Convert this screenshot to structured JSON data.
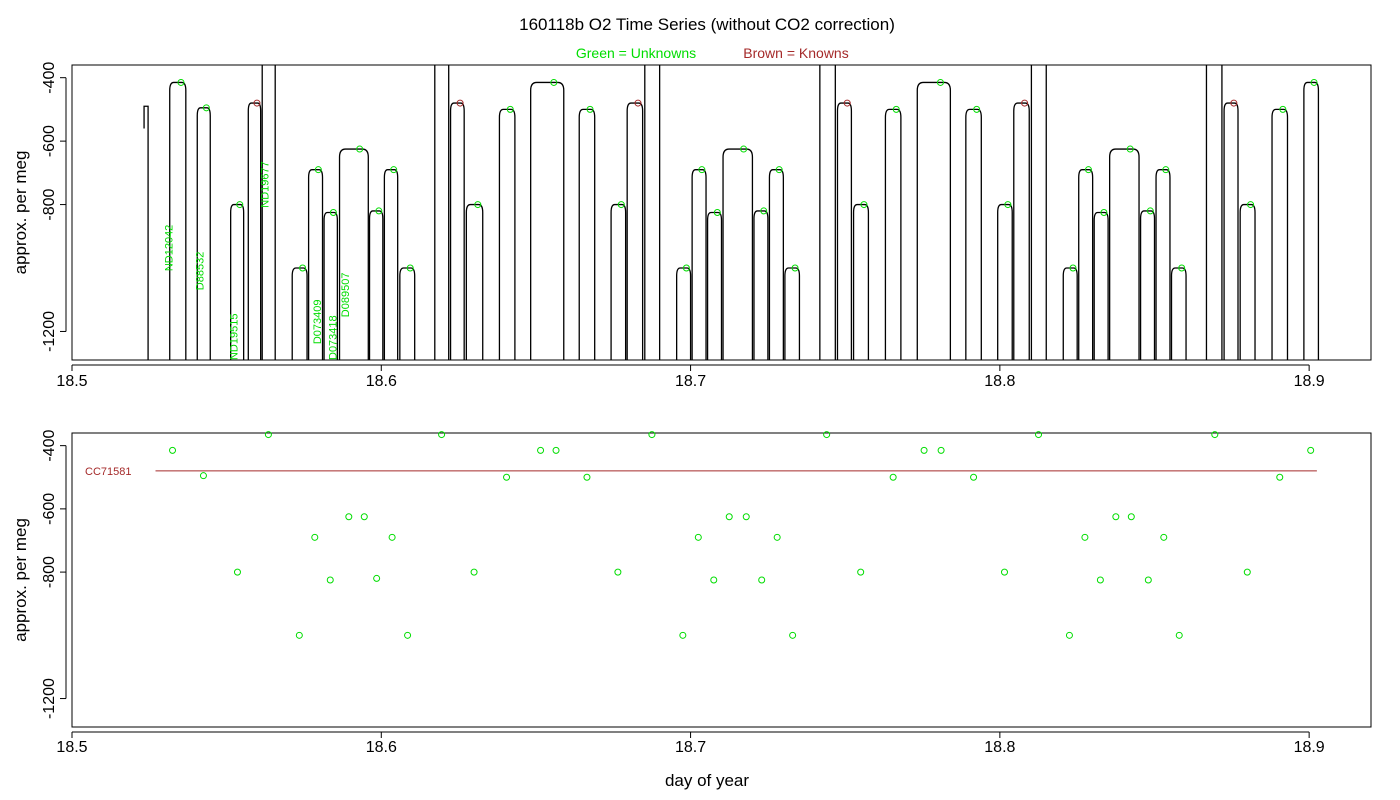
{
  "title": "160118b   O2 Time Series (without CO2 correction)",
  "legend": {
    "unknowns": "Green = Unknowns",
    "knowns": "Brown = Knowns",
    "unknowns_color": "#00dd00",
    "knowns_color": "#a52a2a"
  },
  "xlabel": "day of year",
  "chart_data": [
    {
      "type": "line",
      "panel": "top",
      "ylabel": "approx. per meg",
      "xlim": [
        18.5,
        18.92
      ],
      "ylim": [
        -1290,
        -360
      ],
      "y_inverted": true,
      "xticks": [
        18.5,
        18.6,
        18.7,
        18.8,
        18.9
      ],
      "xtick_labels": [
        "18.5",
        "18.6",
        "18.7",
        "18.8",
        "18.9"
      ],
      "yticks": [
        -400,
        -600,
        -800,
        -1200
      ],
      "ytick_labels": [
        "-400",
        "-600",
        "-800",
        "-1200"
      ],
      "grid": false,
      "trace_color": "#000000",
      "segments": [
        {
          "x": [
            18.5233,
            18.5246
          ],
          "y": -490,
          "role": "start"
        },
        {
          "x": [
            18.5316,
            18.5368
          ],
          "y": -415,
          "role": "unknown"
        },
        {
          "x": [
            18.5405,
            18.5447
          ],
          "y": -495,
          "role": "unknown"
        },
        {
          "x": [
            18.5513,
            18.5555
          ],
          "y": -800,
          "role": "unknown"
        },
        {
          "x": [
            18.557,
            18.561
          ],
          "y": -480,
          "role": "known"
        },
        {
          "x": [
            18.5615,
            18.5657
          ],
          "y": -325,
          "role": "unknown"
        },
        {
          "x": [
            18.5712,
            18.576
          ],
          "y": -1000,
          "role": "unknown"
        },
        {
          "x": [
            18.5765,
            18.581
          ],
          "y": -690,
          "role": "unknown"
        },
        {
          "x": [
            18.5815,
            18.5858
          ],
          "y": -825,
          "role": "unknown"
        },
        {
          "x": [
            18.5865,
            18.5958
          ],
          "y": -625,
          "role": "unknown"
        },
        {
          "x": [
            18.5962,
            18.6005
          ],
          "y": -820,
          "role": "unknown"
        },
        {
          "x": [
            18.601,
            18.6053
          ],
          "y": -690,
          "role": "unknown"
        },
        {
          "x": [
            18.606,
            18.6108
          ],
          "y": -1000,
          "role": "unknown"
        },
        {
          "x": [
            18.6173,
            18.6218
          ],
          "y": -325,
          "role": "unknown"
        },
        {
          "x": [
            18.6224,
            18.6268
          ],
          "y": -480,
          "role": "known"
        },
        {
          "x": [
            18.6275,
            18.6328
          ],
          "y": -800,
          "role": "unknown"
        },
        {
          "x": [
            18.6382,
            18.6432
          ],
          "y": -500,
          "role": "unknown"
        },
        {
          "x": [
            18.6483,
            18.659
          ],
          "y": -415,
          "role": "unknown"
        },
        {
          "x": [
            18.664,
            18.669
          ],
          "y": -500,
          "role": "unknown"
        },
        {
          "x": [
            18.6743,
            18.679
          ],
          "y": -800,
          "role": "unknown"
        },
        {
          "x": [
            18.6795,
            18.6845
          ],
          "y": -480,
          "role": "known"
        },
        {
          "x": [
            18.6852,
            18.69
          ],
          "y": -325,
          "role": "unknown"
        },
        {
          "x": [
            18.6955,
            18.7
          ],
          "y": -1000,
          "role": "unknown"
        },
        {
          "x": [
            18.7005,
            18.705
          ],
          "y": -690,
          "role": "unknown"
        },
        {
          "x": [
            18.7055,
            18.71
          ],
          "y": -825,
          "role": "unknown"
        },
        {
          "x": [
            18.7105,
            18.72
          ],
          "y": -625,
          "role": "unknown"
        },
        {
          "x": [
            18.7205,
            18.725
          ],
          "y": -820,
          "role": "unknown"
        },
        {
          "x": [
            18.7255,
            18.73
          ],
          "y": -690,
          "role": "unknown"
        },
        {
          "x": [
            18.7305,
            18.7352
          ],
          "y": -1000,
          "role": "unknown"
        },
        {
          "x": [
            18.7418,
            18.7468
          ],
          "y": -325,
          "role": "unknown"
        },
        {
          "x": [
            18.7475,
            18.752
          ],
          "y": -480,
          "role": "known"
        },
        {
          "x": [
            18.7527,
            18.7575
          ],
          "y": -800,
          "role": "unknown"
        },
        {
          "x": [
            18.763,
            18.768
          ],
          "y": -500,
          "role": "unknown"
        },
        {
          "x": [
            18.7733,
            18.784
          ],
          "y": -415,
          "role": "unknown"
        },
        {
          "x": [
            18.789,
            18.794
          ],
          "y": -500,
          "role": "unknown"
        },
        {
          "x": [
            18.7993,
            18.804
          ],
          "y": -800,
          "role": "unknown"
        },
        {
          "x": [
            18.8045,
            18.8095
          ],
          "y": -480,
          "role": "known"
        },
        {
          "x": [
            18.8102,
            18.815
          ],
          "y": -325,
          "role": "unknown"
        },
        {
          "x": [
            18.8205,
            18.825
          ],
          "y": -1000,
          "role": "unknown"
        },
        {
          "x": [
            18.8255,
            18.83
          ],
          "y": -690,
          "role": "unknown"
        },
        {
          "x": [
            18.8305,
            18.835
          ],
          "y": -825,
          "role": "unknown"
        },
        {
          "x": [
            18.8355,
            18.845
          ],
          "y": -625,
          "role": "unknown"
        },
        {
          "x": [
            18.8455,
            18.85
          ],
          "y": -820,
          "role": "unknown"
        },
        {
          "x": [
            18.8505,
            18.855
          ],
          "y": -690,
          "role": "unknown"
        },
        {
          "x": [
            18.8555,
            18.8602
          ],
          "y": -1000,
          "role": "unknown"
        },
        {
          "x": [
            18.8668,
            18.8718
          ],
          "y": -325,
          "role": "unknown"
        },
        {
          "x": [
            18.8725,
            18.877
          ],
          "y": -480,
          "role": "known"
        },
        {
          "x": [
            18.8777,
            18.8825
          ],
          "y": -800,
          "role": "unknown"
        },
        {
          "x": [
            18.888,
            18.893
          ],
          "y": -500,
          "role": "unknown"
        },
        {
          "x": [
            18.8983,
            18.903
          ],
          "y": -415,
          "role": "unknown"
        }
      ],
      "annotations": [
        {
          "text": "ND12042",
          "x": 18.5325,
          "y": -1010,
          "color": "#00dd00"
        },
        {
          "text": "D88532",
          "x": 18.5425,
          "y": -1070,
          "color": "#00dd00"
        },
        {
          "text": "ND19515",
          "x": 18.5535,
          "y": -1290,
          "color": "#00dd00"
        },
        {
          "text": "ND19677",
          "x": 18.5635,
          "y": -810,
          "color": "#00dd00"
        },
        {
          "text": "D073409",
          "x": 18.5805,
          "y": -1240,
          "color": "#00dd00"
        },
        {
          "text": "D073418",
          "x": 18.5855,
          "y": -1290,
          "color": "#00dd00"
        },
        {
          "text": "D089507",
          "x": 18.5895,
          "y": -1155,
          "color": "#00dd00"
        }
      ]
    },
    {
      "type": "scatter",
      "panel": "bottom",
      "ylabel": "approx. per meg",
      "xlim": [
        18.5,
        18.92
      ],
      "ylim": [
        -1290,
        -360
      ],
      "y_inverted": true,
      "xticks": [
        18.5,
        18.6,
        18.7,
        18.8,
        18.9
      ],
      "xtick_labels": [
        "18.5",
        "18.6",
        "18.7",
        "18.8",
        "18.9"
      ],
      "yticks": [
        -400,
        -600,
        -800,
        -1200
      ],
      "ytick_labels": [
        "-400",
        "-600",
        "-800",
        "-1200"
      ],
      "grid": false,
      "point_color": "#00dd00",
      "reference_line": {
        "label": "CC71581",
        "x": [
          18.527,
          18.9025
        ],
        "y": -480,
        "color": "#a52a2a"
      },
      "points": [
        {
          "x": 18.5325,
          "y": -415
        },
        {
          "x": 18.5425,
          "y": -495
        },
        {
          "x": 18.5535,
          "y": -800
        },
        {
          "x": 18.5635,
          "y": -365
        },
        {
          "x": 18.5735,
          "y": -1000
        },
        {
          "x": 18.5785,
          "y": -690
        },
        {
          "x": 18.5835,
          "y": -825
        },
        {
          "x": 18.5895,
          "y": -625
        },
        {
          "x": 18.5945,
          "y": -625
        },
        {
          "x": 18.5985,
          "y": -820
        },
        {
          "x": 18.6035,
          "y": -690
        },
        {
          "x": 18.6085,
          "y": -1000
        },
        {
          "x": 18.6195,
          "y": -365
        },
        {
          "x": 18.63,
          "y": -800
        },
        {
          "x": 18.6405,
          "y": -500
        },
        {
          "x": 18.6515,
          "y": -415
        },
        {
          "x": 18.6565,
          "y": -415
        },
        {
          "x": 18.6665,
          "y": -500
        },
        {
          "x": 18.6765,
          "y": -800
        },
        {
          "x": 18.6875,
          "y": -365
        },
        {
          "x": 18.6975,
          "y": -1000
        },
        {
          "x": 18.7025,
          "y": -690
        },
        {
          "x": 18.7075,
          "y": -825
        },
        {
          "x": 18.7125,
          "y": -625
        },
        {
          "x": 18.718,
          "y": -625
        },
        {
          "x": 18.723,
          "y": -825
        },
        {
          "x": 18.728,
          "y": -690
        },
        {
          "x": 18.733,
          "y": -1000
        },
        {
          "x": 18.744,
          "y": -365
        },
        {
          "x": 18.755,
          "y": -800
        },
        {
          "x": 18.7655,
          "y": -500
        },
        {
          "x": 18.7755,
          "y": -415
        },
        {
          "x": 18.781,
          "y": -415
        },
        {
          "x": 18.7915,
          "y": -500
        },
        {
          "x": 18.8015,
          "y": -800
        },
        {
          "x": 18.8125,
          "y": -365
        },
        {
          "x": 18.8225,
          "y": -1000
        },
        {
          "x": 18.8275,
          "y": -690
        },
        {
          "x": 18.8325,
          "y": -825
        },
        {
          "x": 18.8375,
          "y": -625
        },
        {
          "x": 18.8425,
          "y": -625
        },
        {
          "x": 18.848,
          "y": -825
        },
        {
          "x": 18.853,
          "y": -690
        },
        {
          "x": 18.858,
          "y": -1000
        },
        {
          "x": 18.8695,
          "y": -365
        },
        {
          "x": 18.88,
          "y": -800
        },
        {
          "x": 18.8905,
          "y": -500
        },
        {
          "x": 18.9005,
          "y": -415
        }
      ]
    }
  ]
}
